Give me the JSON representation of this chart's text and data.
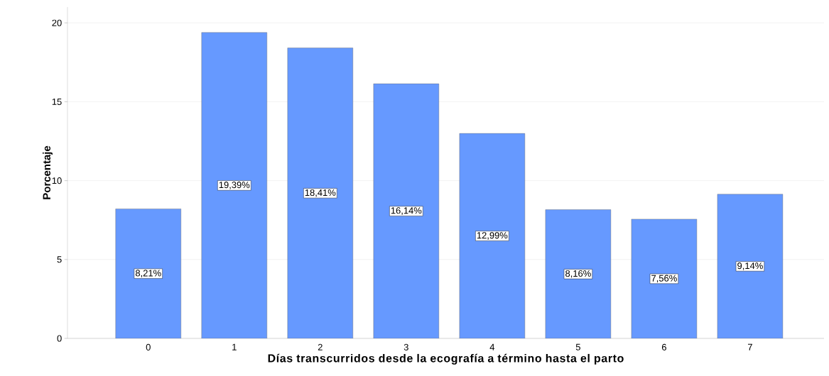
{
  "chart_data": {
    "type": "bar",
    "xlabel": "Días transcurridos desde la ecografía a término hasta el parto",
    "ylabel": "Porcentaje",
    "categories": [
      "0",
      "1",
      "2",
      "3",
      "4",
      "5",
      "6",
      "7"
    ],
    "values": [
      8.21,
      19.39,
      18.41,
      16.14,
      12.99,
      8.16,
      7.56,
      9.14
    ],
    "value_labels": [
      "8,21%",
      "19,39%",
      "18,41%",
      "16,14%",
      "12,99%",
      "8,16%",
      "7,56%",
      "9,14%"
    ],
    "color": "#6699ff",
    "ylim": [
      0,
      21
    ],
    "yticks": [
      0,
      5,
      10,
      15,
      20
    ],
    "grid": "y"
  }
}
